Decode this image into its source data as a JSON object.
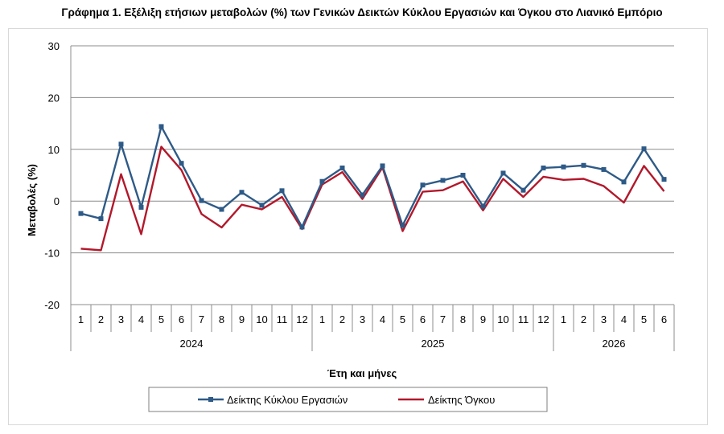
{
  "chart_data": {
    "type": "line",
    "title": "Γράφημα 1. Εξέλιξη ετήσιων μεταβολών (%) των Γενικών Δεικτών Κύκλου Εργασιών και Όγκου στο Λιανικό Εμπόριο",
    "xlabel": "Έτη και μήνες",
    "ylabel": "Μεταβολές (%)",
    "ylim": [
      -20,
      30
    ],
    "yticks": [
      -20,
      -10,
      0,
      10,
      20,
      30
    ],
    "grid": true,
    "legend": "bottom",
    "categories": [
      "1",
      "2",
      "3",
      "4",
      "5",
      "6",
      "7",
      "8",
      "9",
      "10",
      "11",
      "12",
      "1",
      "2",
      "3",
      "4",
      "5",
      "6",
      "7",
      "8",
      "9",
      "10",
      "11",
      "12",
      "1",
      "2",
      "3",
      "4",
      "5",
      "6"
    ],
    "years": [
      {
        "label": "2024",
        "months": 12
      },
      {
        "label": "2025",
        "months": 12
      },
      {
        "label": "2026",
        "months": 6
      }
    ],
    "series": [
      {
        "name": "Δείκτης Κύκλου Εργασιών",
        "color": "#2e5a87",
        "marker": "square",
        "values": [
          -2.4,
          -3.4,
          11.0,
          -1.2,
          14.4,
          7.3,
          0.1,
          -1.6,
          1.7,
          -0.8,
          2.0,
          -5.0,
          3.8,
          6.4,
          1.2,
          6.8,
          -4.7,
          3.1,
          4.0,
          5.0,
          -1.0,
          5.4,
          2.1,
          6.4,
          6.6,
          6.9,
          6.1,
          3.7,
          10.1,
          4.2
        ]
      },
      {
        "name": "Δείκτης Όγκου",
        "color": "#b2182b",
        "marker": "none",
        "values": [
          -9.2,
          -9.5,
          5.2,
          -6.4,
          10.5,
          6.0,
          -2.5,
          -5.1,
          -0.7,
          -1.6,
          0.8,
          -5.4,
          3.2,
          5.6,
          0.4,
          6.5,
          -5.8,
          1.8,
          2.1,
          3.8,
          -1.8,
          4.3,
          0.8,
          4.7,
          4.1,
          4.3,
          2.9,
          -0.3,
          6.8,
          1.9
        ]
      }
    ]
  }
}
